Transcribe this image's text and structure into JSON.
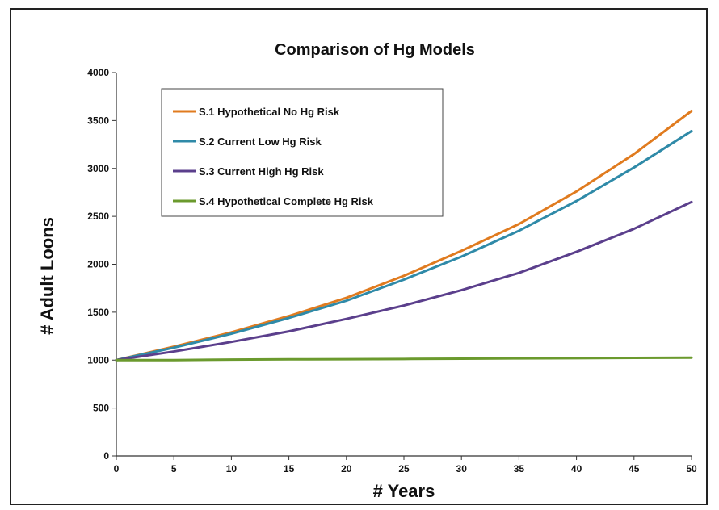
{
  "chart_data": {
    "type": "line",
    "title": "Comparison of Hg Models",
    "xlabel": "# Years",
    "ylabel": "# Adult Loons",
    "xlim": [
      0,
      50
    ],
    "ylim": [
      0,
      4000
    ],
    "xticks": [
      0,
      5,
      10,
      15,
      20,
      25,
      30,
      35,
      40,
      45,
      50
    ],
    "yticks": [
      0,
      500,
      1000,
      1500,
      2000,
      2500,
      3000,
      3500,
      4000
    ],
    "grid": false,
    "legend_position": "top-left",
    "x": [
      0,
      5,
      10,
      15,
      20,
      25,
      30,
      35,
      40,
      45,
      50
    ],
    "series": [
      {
        "name": "S.1 Hypothetical No Hg Risk",
        "color": "#e07b1f",
        "values": [
          1000,
          1140,
          1290,
          1460,
          1650,
          1880,
          2140,
          2420,
          2760,
          3150,
          3600
        ]
      },
      {
        "name": "S.2 Current Low Hg Risk",
        "color": "#2f8aa8",
        "values": [
          1000,
          1130,
          1275,
          1440,
          1620,
          1840,
          2080,
          2350,
          2660,
          3010,
          3390
        ]
      },
      {
        "name": "S.3 Current High Hg Risk",
        "color": "#5b3f8c",
        "values": [
          1000,
          1090,
          1190,
          1300,
          1430,
          1570,
          1730,
          1910,
          2130,
          2370,
          2650
        ]
      },
      {
        "name": "S.4 Hypothetical Complete Hg Risk",
        "color": "#6b9a2e",
        "values": [
          1000,
          1000,
          1005,
          1008,
          1010,
          1012,
          1015,
          1018,
          1020,
          1023,
          1025
        ]
      }
    ]
  }
}
